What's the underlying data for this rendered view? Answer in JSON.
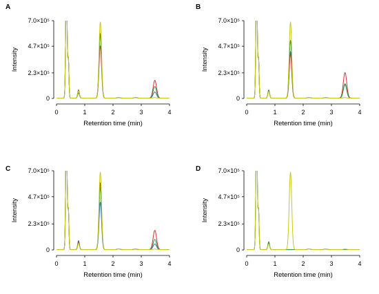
{
  "chart_data": [
    {
      "panel": "A",
      "type": "line",
      "xlabel": "Retention time (min)",
      "ylabel": "Intensity",
      "xlim": [
        0,
        4
      ],
      "ylim": [
        0,
        700000
      ],
      "xticks": [
        "0",
        "1",
        "2",
        "3",
        "4"
      ],
      "yticks": [
        {
          "value": 0,
          "label": "0"
        },
        {
          "value": 230000,
          "label": "2.3×10⁵"
        },
        {
          "value": 470000,
          "label": "4.7×10⁵"
        },
        {
          "value": 700000,
          "label": "7.0×10⁵"
        }
      ],
      "grid": false,
      "legend": "none",
      "series": [
        {
          "color": "#3a6fb0",
          "void": 700000,
          "p08": 48000,
          "main": 580000,
          "late": 55000
        },
        {
          "color": "#d7302a",
          "void": 700000,
          "p08": 75000,
          "main": 470000,
          "late": 160000
        },
        {
          "color": "#2e9a46",
          "void": 700000,
          "p08": 72000,
          "main": 580000,
          "late": 105000
        },
        {
          "color": "#c8c813",
          "void": 700000,
          "p08": 65000,
          "main": 685000,
          "late": 5000
        }
      ]
    },
    {
      "panel": "B",
      "type": "line",
      "xlabel": "Retention time (min)",
      "ylabel": "Intensity",
      "xlim": [
        0,
        4
      ],
      "ylim": [
        0,
        700000
      ],
      "xticks": [
        "0",
        "1",
        "2",
        "3",
        "4"
      ],
      "yticks": [
        {
          "value": 0,
          "label": "0"
        },
        {
          "value": 230000,
          "label": "2.3×10⁵"
        },
        {
          "value": 470000,
          "label": "4.7×10⁵"
        },
        {
          "value": 700000,
          "label": "7.0×10⁵"
        }
      ],
      "grid": false,
      "legend": "none",
      "series": [
        {
          "color": "#3a6fb0",
          "void": 700000,
          "p08": 65000,
          "main": 420000,
          "late": 120000
        },
        {
          "color": "#d7302a",
          "void": 700000,
          "p08": 70000,
          "main": 400000,
          "late": 230000
        },
        {
          "color": "#2e9a46",
          "void": 700000,
          "p08": 75000,
          "main": 520000,
          "late": 130000
        },
        {
          "color": "#c8c813",
          "void": 700000,
          "p08": 60000,
          "main": 685000,
          "late": 5000
        }
      ]
    },
    {
      "panel": "C",
      "type": "line",
      "xlabel": "Retention time (min)",
      "ylabel": "Intensity",
      "xlim": [
        0,
        4
      ],
      "ylim": [
        0,
        700000
      ],
      "xticks": [
        "0",
        "1",
        "2",
        "3",
        "4"
      ],
      "yticks": [
        {
          "value": 0,
          "label": "0"
        },
        {
          "value": 230000,
          "label": "2.3×10⁵"
        },
        {
          "value": 470000,
          "label": "4.7×10⁵"
        },
        {
          "value": 700000,
          "label": "7.0×10⁵"
        }
      ],
      "grid": false,
      "legend": "none",
      "series": [
        {
          "color": "#3a6fb0",
          "void": 700000,
          "p08": 80000,
          "main": 420000,
          "late": 50000
        },
        {
          "color": "#d7302a",
          "void": 700000,
          "p08": 70000,
          "main": 590000,
          "late": 170000
        },
        {
          "color": "#2e9a46",
          "void": 700000,
          "p08": 60000,
          "main": 550000,
          "late": 90000
        },
        {
          "color": "#c8c813",
          "void": 700000,
          "p08": 55000,
          "main": 685000,
          "late": 5000
        }
      ]
    },
    {
      "panel": "D",
      "type": "line",
      "xlabel": "Retention time (min)",
      "ylabel": "Intensity",
      "xlim": [
        0,
        4
      ],
      "ylim": [
        0,
        700000
      ],
      "xticks": [
        "0",
        "1",
        "2",
        "3",
        "4"
      ],
      "yticks": [
        {
          "value": 0,
          "label": "0"
        },
        {
          "value": 230000,
          "label": "2.3×10⁵"
        },
        {
          "value": 470000,
          "label": "4.7×10⁵"
        },
        {
          "value": 700000,
          "label": "7.0×10⁵"
        }
      ],
      "grid": false,
      "legend": "none",
      "series": [
        {
          "color": "#3a6fb0",
          "void": 700000,
          "p08": 60000,
          "main": 0,
          "late": 0
        },
        {
          "color": "#2e9a46",
          "void": 700000,
          "p08": 70000,
          "main": 0,
          "late": 0
        },
        {
          "color": "#c8c813",
          "void": 700000,
          "p08": 50000,
          "main": 685000,
          "late": 5000
        }
      ]
    }
  ]
}
